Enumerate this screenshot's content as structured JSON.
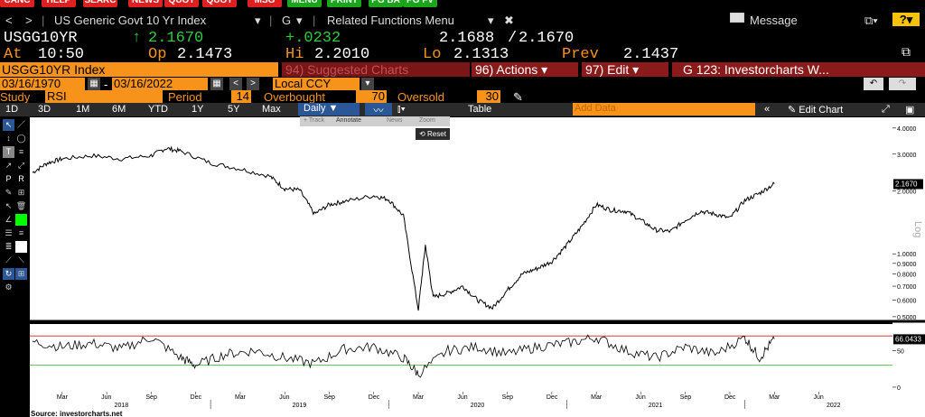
{
  "fkeys": [
    {
      "label": "CANC",
      "color": "red"
    },
    {
      "label": "HELP",
      "color": "red"
    },
    {
      "label": "SEARC",
      "color": "red"
    },
    {
      "label": "NEWS",
      "color": "red"
    },
    {
      "label": "QUOT",
      "color": "red"
    },
    {
      "label": "QUOT",
      "color": "red"
    },
    {
      "label": "MSG",
      "color": "red"
    },
    {
      "label": "MENU",
      "color": "green"
    },
    {
      "label": "PRINT",
      "color": "green"
    },
    {
      "label": "PG BA",
      "color": "green"
    },
    {
      "label": "PG FV",
      "color": "green"
    }
  ],
  "cmdbar": {
    "back": "<",
    "forward": ">",
    "security": "US Generic Govt 10 Yr Index",
    "security_caret": "▾",
    "mode": "G",
    "mode_caret": "▾",
    "related": "Related Functions Menu",
    "message": "Message",
    "help": "?"
  },
  "quote": {
    "ticker": "USGG10YR",
    "arrow": "↑",
    "last": "2.1670",
    "change": "+.0232",
    "bid_ask_left": "2.1688",
    "slash": "/",
    "bid_ask_right": "2.1670",
    "at_label": "At",
    "time": "10:50",
    "op_label": "Op",
    "open": "2.1473",
    "hi_label": "Hi",
    "high": "2.2010",
    "lo_label": "Lo",
    "low": "2.1313",
    "prev_label": "Prev",
    "prev": "2.1437"
  },
  "menu": {
    "ticker_index": "USGG10YR Index",
    "suggested": "94) Suggested Charts",
    "actions": "96) Actions",
    "actions_caret": "▾",
    "edit": "97) Edit",
    "edit_caret": "▾",
    "chart_title": "G 123: Investorcharts W..."
  },
  "range": {
    "start": "03/16/1970",
    "dash": "-",
    "end": "03/16/2022",
    "prev": "<",
    "next": ">",
    "currency": "Local CCY",
    "currency_caret": "▾",
    "undo": "↶",
    "redo": "↷"
  },
  "study": {
    "label": "Study",
    "name": "RSI",
    "period_label": "Period",
    "period": "14",
    "overbought_label": "Overbought",
    "overbought": "70",
    "oversold_label": "Oversold",
    "oversold": "30"
  },
  "periods": {
    "p1d": "1D",
    "p3d": "3D",
    "p1m": "1M",
    "p6m": "6M",
    "pytd": "YTD",
    "p1y": "1Y",
    "p5y": "5Y",
    "pmax": "Max",
    "freq": "Daily",
    "freq_caret": "▼",
    "table": "Table",
    "add_data": "Add Data",
    "collapse": "«",
    "edit_chart": "Edit Chart"
  },
  "popup": {
    "track": "+ Track",
    "annotate": "Annotate",
    "news": "News",
    "zoom": "Zoom",
    "reset": "Reset"
  },
  "chart_data": [
    {
      "type": "line",
      "scale": "log",
      "axis_label": "Log",
      "y_ticks": [
        "4.0000",
        "3.0000",
        "2.0000",
        "1.0000",
        "0.9000",
        "0.8000",
        "0.7000",
        "0.6000",
        "0.5000"
      ],
      "y_tick_values": [
        4,
        3,
        2,
        1,
        0.9,
        0.8,
        0.7,
        0.6,
        0.5
      ],
      "ylim": [
        0.48,
        4.5
      ],
      "last_label": "2.1670",
      "last_value": 2.167,
      "x_months": [
        "Mar",
        "Jun",
        "Sep",
        "Dec",
        "Mar",
        "Jun",
        "Sep",
        "Dec",
        "Mar",
        "Jun",
        "Sep",
        "Dec",
        "Mar",
        "Jun",
        "Sep",
        "Dec",
        "Mar",
        "Jun"
      ],
      "x_years": [
        "2018",
        "2019",
        "2020",
        "2021",
        "2022"
      ],
      "series": [
        {
          "x": [
            "2018-01",
            "2018-02",
            "2018-03",
            "2018-05",
            "2018-07",
            "2018-09",
            "2018-10",
            "2018-11",
            "2019-01",
            "2019-03",
            "2019-05",
            "2019-06",
            "2019-07",
            "2019-08",
            "2019-09",
            "2019-10",
            "2019-12",
            "2020-01",
            "2020-02",
            "2020-03",
            "2020-03",
            "2020-04",
            "2020-05",
            "2020-06",
            "2020-07",
            "2020-08",
            "2020-09",
            "2020-10",
            "2020-11",
            "2020-12",
            "2021-01",
            "2021-02",
            "2021-03",
            "2021-04",
            "2021-05",
            "2021-06",
            "2021-07",
            "2021-08",
            "2021-09",
            "2021-10",
            "2021-11",
            "2021-12",
            "2022-01",
            "2022-02",
            "2022-03"
          ],
          "values": [
            2.45,
            2.72,
            2.85,
            2.95,
            2.85,
            2.95,
            3.2,
            3.1,
            2.72,
            2.55,
            2.35,
            2.05,
            2.02,
            1.55,
            1.72,
            1.78,
            1.9,
            1.82,
            1.52,
            0.54,
            1.1,
            0.62,
            0.65,
            0.7,
            0.6,
            0.55,
            0.67,
            0.8,
            0.85,
            0.92,
            1.1,
            1.35,
            1.72,
            1.62,
            1.6,
            1.45,
            1.3,
            1.28,
            1.45,
            1.6,
            1.55,
            1.48,
            1.8,
            1.95,
            2.167
          ]
        }
      ]
    },
    {
      "type": "line",
      "study": "RSI",
      "y_ticks": [
        "50",
        "0"
      ],
      "y_tick_values": [
        50,
        0
      ],
      "ylim": [
        -5,
        85
      ],
      "overbought": 70,
      "oversold": 30,
      "last_label": "66.0433",
      "last_value": 66.0433,
      "series": [
        {
          "x": [
            "2018-01",
            "2018-03",
            "2018-05",
            "2018-07",
            "2018-09",
            "2018-11",
            "2018-12",
            "2019-02",
            "2019-04",
            "2019-06",
            "2019-08",
            "2019-10",
            "2019-12",
            "2020-02",
            "2020-03",
            "2020-05",
            "2020-07",
            "2020-09",
            "2020-11",
            "2021-01",
            "2021-03",
            "2021-05",
            "2021-07",
            "2021-09",
            "2021-11",
            "2022-01",
            "2022-02",
            "2022-03"
          ],
          "values": [
            62,
            55,
            60,
            52,
            68,
            40,
            30,
            45,
            50,
            40,
            32,
            52,
            55,
            40,
            18,
            50,
            55,
            45,
            55,
            60,
            68,
            50,
            40,
            55,
            45,
            68,
            40,
            66
          ]
        }
      ]
    }
  ],
  "source": "Source: investorcharts.net"
}
